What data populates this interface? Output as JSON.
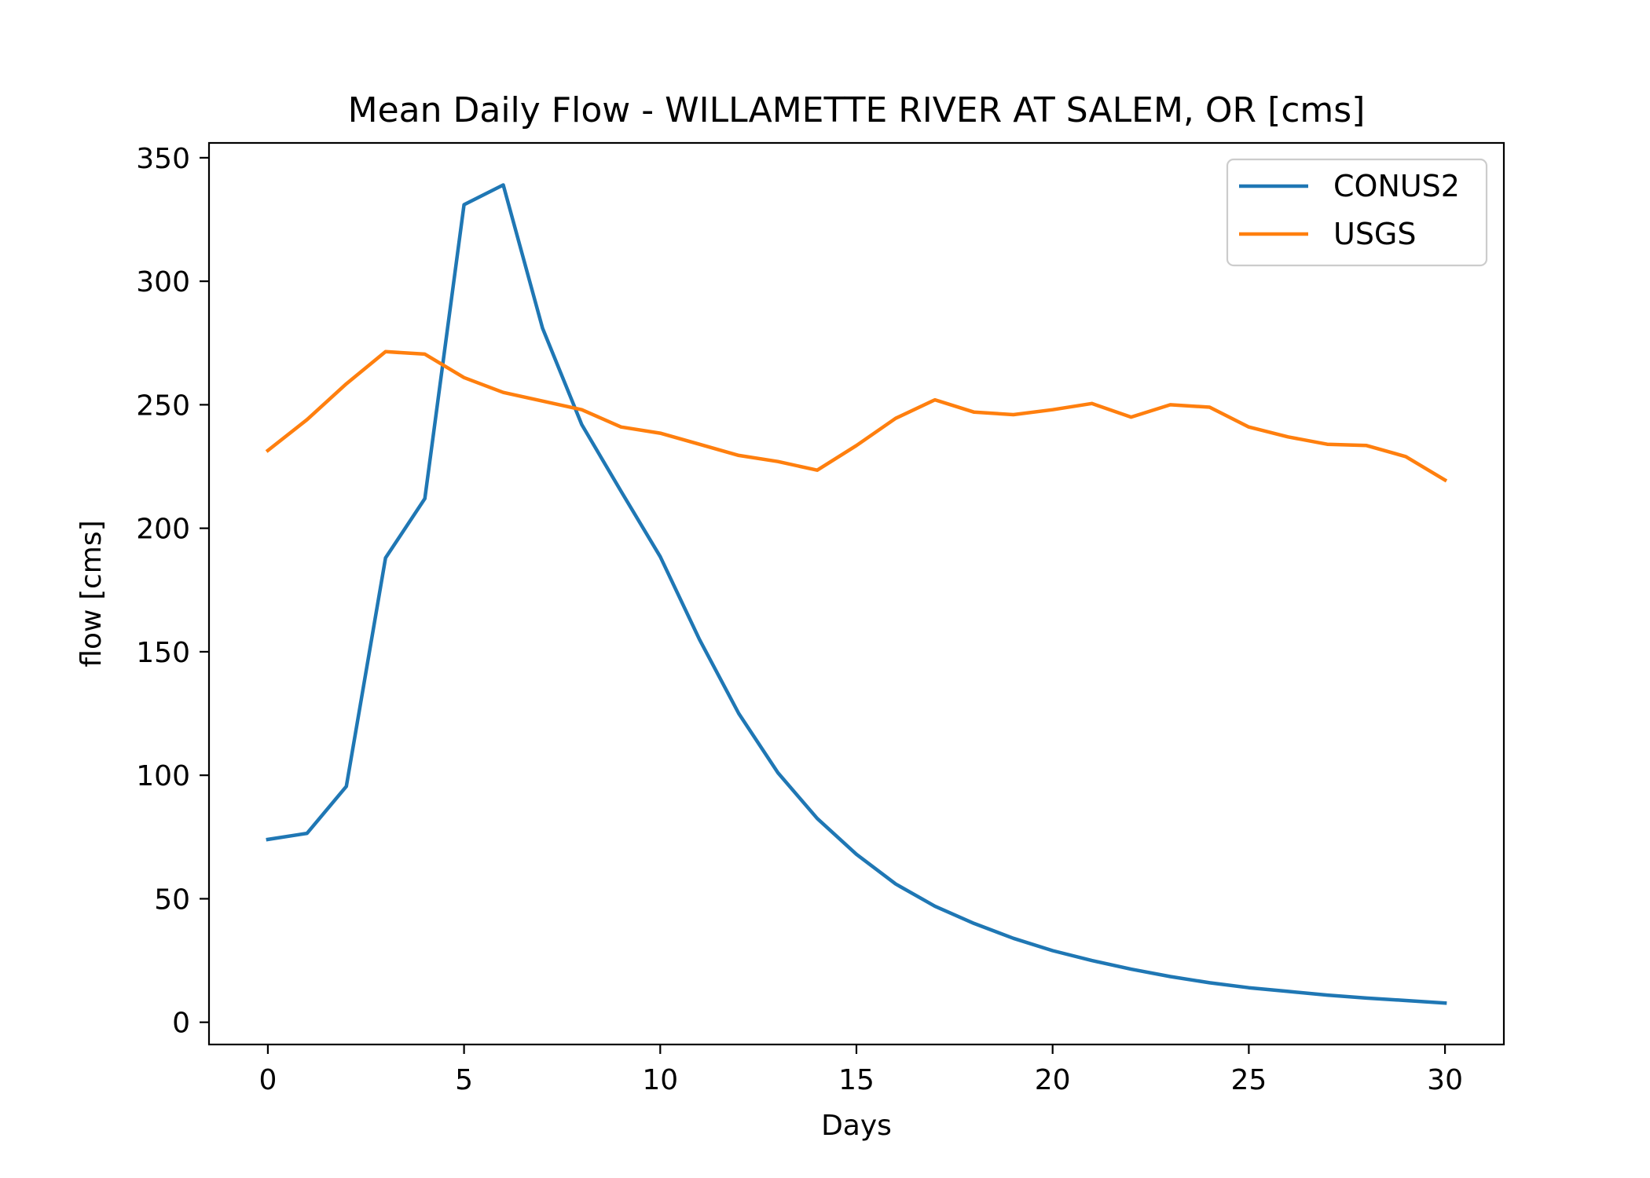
{
  "chart_data": {
    "type": "line",
    "title": "Mean Daily Flow - WILLAMETTE RIVER AT SALEM, OR [cms]",
    "xlabel": "Days",
    "ylabel": "flow [cms]",
    "xlim": [
      -1.5,
      31.5
    ],
    "ylim": [
      -9,
      356
    ],
    "xticks": [
      0,
      5,
      10,
      15,
      20,
      25,
      30
    ],
    "yticks": [
      0,
      50,
      100,
      150,
      200,
      250,
      300,
      350
    ],
    "grid": false,
    "legend_position": "top-right",
    "x": [
      0,
      1,
      2,
      3,
      4,
      5,
      6,
      7,
      8,
      9,
      10,
      11,
      12,
      13,
      14,
      15,
      16,
      17,
      18,
      19,
      20,
      21,
      22,
      23,
      24,
      25,
      26,
      27,
      28,
      29,
      30
    ],
    "series": [
      {
        "name": "CONUS2",
        "color": "#1f77b4",
        "values": [
          74,
          76.5,
          95.5,
          188,
          212,
          331,
          339,
          281,
          242,
          215,
          188.5,
          155,
          125,
          101,
          82.5,
          68,
          56,
          47,
          40,
          34,
          29,
          25,
          21.5,
          18.5,
          16,
          14,
          12.5,
          11,
          9.8,
          8.8,
          7.8
        ]
      },
      {
        "name": "USGS",
        "color": "#ff7f0e",
        "values": [
          231.5,
          244,
          258.5,
          271.5,
          270.5,
          261,
          255,
          251.5,
          248,
          241,
          238.5,
          234,
          229.5,
          227,
          223.5,
          233.5,
          244.5,
          252,
          247,
          246,
          248,
          250.5,
          245,
          250,
          249,
          241,
          237,
          234,
          233.5,
          229,
          219.5
        ]
      }
    ]
  }
}
